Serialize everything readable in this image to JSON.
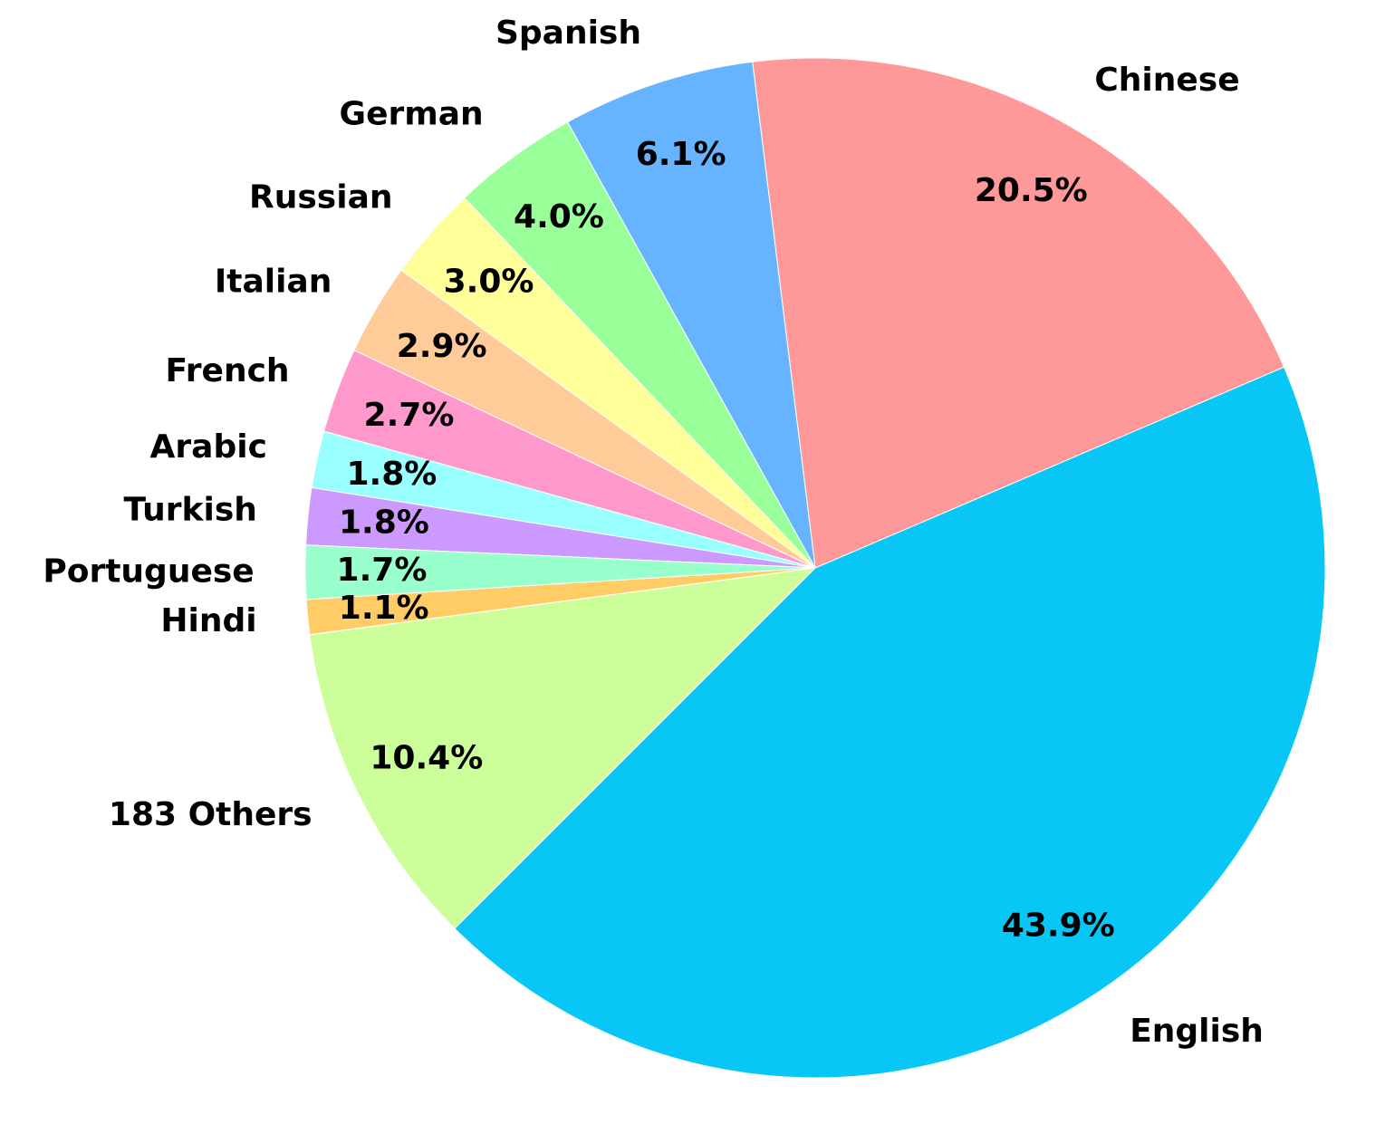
{
  "chart_data": {
    "type": "pie",
    "title": "",
    "slices": [
      {
        "label": "English",
        "percent_label": "43.9%",
        "value": 43.9,
        "color": "#08c7f6"
      },
      {
        "label": "Chinese",
        "percent_label": "20.5%",
        "value": 20.5,
        "color": "#ff9999"
      },
      {
        "label": "Spanish",
        "percent_label": "6.1%",
        "value": 6.1,
        "color": "#66b3ff"
      },
      {
        "label": "German",
        "percent_label": "4.0%",
        "value": 4.0,
        "color": "#99ff99"
      },
      {
        "label": "Russian",
        "percent_label": "3.0%",
        "value": 3.0,
        "color": "#ffff99"
      },
      {
        "label": "Italian",
        "percent_label": "2.9%",
        "value": 2.9,
        "color": "#ffcc99"
      },
      {
        "label": "French",
        "percent_label": "2.7%",
        "value": 2.7,
        "color": "#ff99cc"
      },
      {
        "label": "Arabic",
        "percent_label": "1.8%",
        "value": 1.8,
        "color": "#99ffff"
      },
      {
        "label": "Turkish",
        "percent_label": "1.8%",
        "value": 1.8,
        "color": "#cc99ff"
      },
      {
        "label": "Portuguese",
        "percent_label": "1.7%",
        "value": 1.7,
        "color": "#99ffcc"
      },
      {
        "label": "Hindi",
        "percent_label": "1.1%",
        "value": 1.1,
        "color": "#ffcc66"
      },
      {
        "label": "183 Others",
        "percent_label": "10.4%",
        "value": 10.4,
        "color": "#ccff99"
      }
    ]
  }
}
